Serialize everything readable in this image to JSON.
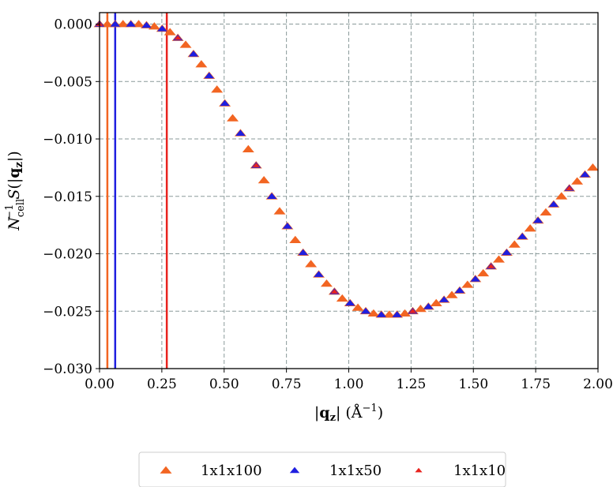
{
  "chart_data": {
    "type": "scatter",
    "title": "",
    "xlabel": "|q_z| (Å^-1)",
    "ylabel": "N_cell^-1 S(|q_z|)",
    "xlim": [
      0.0,
      2.0
    ],
    "ylim": [
      -0.03,
      0.001
    ],
    "grid": true,
    "legend_placement": "bottom-center, below axes",
    "x_ticks": [
      "0.00",
      "0.25",
      "0.50",
      "0.75",
      "1.00",
      "1.25",
      "1.50",
      "1.75",
      "2.00"
    ],
    "y_ticks": [
      "0.000",
      "−0.005",
      "−0.010",
      "−0.015",
      "−0.020",
      "−0.025",
      "−0.030"
    ],
    "series": [
      {
        "name": "1x1x100",
        "color": "#f26522",
        "marker": "triangle-up",
        "marker_size": "large",
        "x": [
          0.0,
          0.0314,
          0.0628,
          0.0942,
          0.1257,
          0.1571,
          0.1885,
          0.2199,
          0.2513,
          0.2827,
          0.3142,
          0.3456,
          0.377,
          0.4084,
          0.4398,
          0.4712,
          0.5027,
          0.5341,
          0.5655,
          0.5969,
          0.6283,
          0.6597,
          0.6912,
          0.7226,
          0.754,
          0.7854,
          0.8168,
          0.8482,
          0.8796,
          0.9111,
          0.9425,
          0.9739,
          1.0053,
          1.0367,
          1.0681,
          1.0996,
          1.131,
          1.1624,
          1.1938,
          1.2252,
          1.2566,
          1.2881,
          1.3195,
          1.3509,
          1.3823,
          1.4137,
          1.4451,
          1.4765,
          1.508,
          1.5394,
          1.5708,
          1.6022,
          1.6336,
          1.665,
          1.6965,
          1.7279,
          1.7593,
          1.7907,
          1.8221,
          1.8535,
          1.885,
          1.9164,
          1.9478,
          1.9792
        ],
        "y": [
          0.0,
          0.0,
          0.0,
          0.0,
          0.0,
          0.0,
          -0.0001,
          -0.0002,
          -0.0004,
          -0.0007,
          -0.0012,
          -0.0018,
          -0.0026,
          -0.0035,
          -0.0045,
          -0.0057,
          -0.0069,
          -0.0082,
          -0.0095,
          -0.0109,
          -0.0123,
          -0.0136,
          -0.015,
          -0.0163,
          -0.0176,
          -0.0188,
          -0.0199,
          -0.0209,
          -0.0218,
          -0.0226,
          -0.0233,
          -0.0239,
          -0.0243,
          -0.0247,
          -0.025,
          -0.0252,
          -0.0253,
          -0.0253,
          -0.0253,
          -0.0252,
          -0.025,
          -0.0248,
          -0.0246,
          -0.0243,
          -0.024,
          -0.0236,
          -0.0232,
          -0.0227,
          -0.0222,
          -0.0217,
          -0.0211,
          -0.0205,
          -0.0199,
          -0.0192,
          -0.0185,
          -0.0178,
          -0.0171,
          -0.0164,
          -0.0157,
          -0.015,
          -0.0143,
          -0.0137,
          -0.0131,
          -0.0125
        ]
      },
      {
        "name": "1x1x50",
        "color": "#1f1fe0",
        "marker": "triangle-up",
        "marker_size": "medium",
        "x": [
          0.0,
          0.0628,
          0.1257,
          0.1885,
          0.2513,
          0.3142,
          0.377,
          0.4398,
          0.5027,
          0.5655,
          0.6283,
          0.6912,
          0.754,
          0.8168,
          0.8796,
          0.9425,
          1.0053,
          1.0681,
          1.131,
          1.1938,
          1.2566,
          1.3195,
          1.3823,
          1.4451,
          1.508,
          1.5708,
          1.6336,
          1.6965,
          1.7593,
          1.8221,
          1.885,
          1.9478
        ],
        "y": [
          0.0,
          0.0,
          0.0,
          -0.0001,
          -0.0004,
          -0.0012,
          -0.0026,
          -0.0045,
          -0.0069,
          -0.0095,
          -0.0123,
          -0.015,
          -0.0176,
          -0.0199,
          -0.0218,
          -0.0233,
          -0.0243,
          -0.025,
          -0.0253,
          -0.0253,
          -0.025,
          -0.0246,
          -0.024,
          -0.0232,
          -0.0222,
          -0.0211,
          -0.0199,
          -0.0185,
          -0.0171,
          -0.0157,
          -0.0143,
          -0.0131
        ]
      },
      {
        "name": "1x1x10",
        "color": "#e8231e",
        "marker": "triangle-up",
        "marker_size": "small",
        "x": [
          0.0,
          0.3142,
          0.6283,
          0.9425,
          1.2566,
          1.5708,
          1.885
        ],
        "y": [
          0.0,
          -0.0012,
          -0.0123,
          -0.0233,
          -0.025,
          -0.0211,
          -0.0143
        ]
      }
    ],
    "vertical_lines": [
      {
        "x": 0.0314,
        "color": "#f26522",
        "series": "1x1x100"
      },
      {
        "x": 0.0628,
        "color": "#1f1fe0",
        "series": "1x1x50"
      },
      {
        "x": 0.2699,
        "color": "#e8231e",
        "series": "1x1x10"
      }
    ]
  }
}
